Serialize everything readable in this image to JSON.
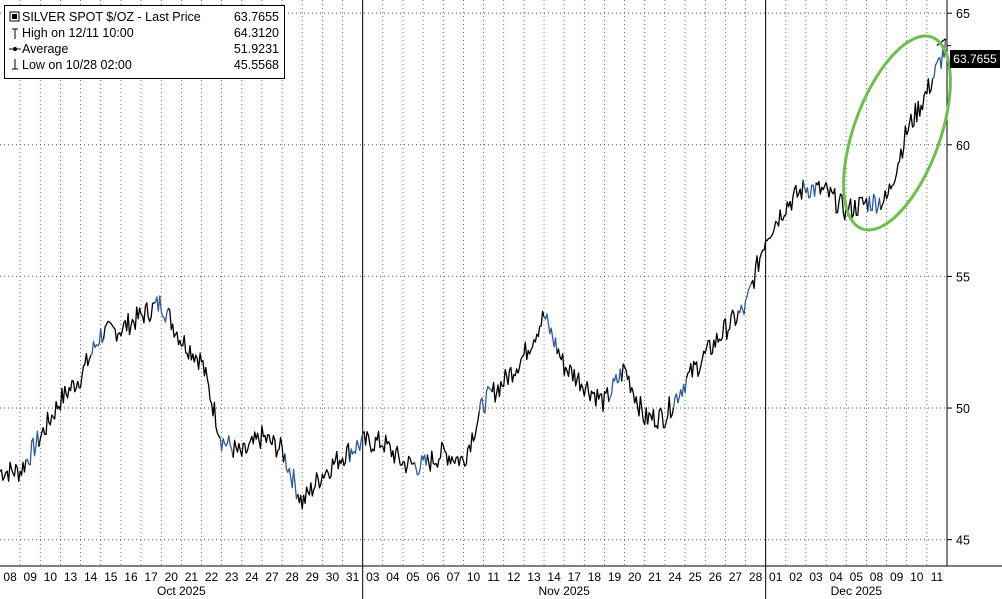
{
  "legend": {
    "title": "SILVER SPOT $/OZ - Last Price",
    "last_price": "63.7655",
    "high_label": "High on 12/11 10:00",
    "high_value": "64.3120",
    "avg_label": "Average",
    "avg_value": "51.9231",
    "low_label": "Low on 10/28 02:00",
    "low_value": "45.5568"
  },
  "price_tag": "63.7655",
  "chart_data": {
    "type": "line",
    "title": "SILVER SPOT $/OZ",
    "ylim": [
      44,
      65.5
    ],
    "yticks": [
      45,
      50,
      55,
      60,
      65
    ],
    "grid": true,
    "legend_position": "top-left",
    "day_labels": [
      "08",
      "09",
      "10",
      "13",
      "14",
      "15",
      "16",
      "17",
      "20",
      "21",
      "22",
      "23",
      "24",
      "27",
      "28",
      "29",
      "30",
      "31",
      "03",
      "04",
      "05",
      "06",
      "07",
      "10",
      "11",
      "12",
      "13",
      "14",
      "17",
      "18",
      "19",
      "20",
      "21",
      "24",
      "25",
      "26",
      "27",
      "28",
      "01",
      "02",
      "03",
      "04",
      "05",
      "08",
      "09",
      "10",
      "11"
    ],
    "month_labels": [
      {
        "label": "Oct 2025",
        "start_day": 0,
        "end_day": 17
      },
      {
        "label": "Nov 2025",
        "start_day": 18,
        "end_day": 37
      },
      {
        "label": "Dec 2025",
        "start_day": 38,
        "end_day": 46
      }
    ],
    "series": [
      {
        "name": "SILVER SPOT $/OZ",
        "values": [
          47.6,
          48.9,
          50.3,
          51.2,
          52.8,
          53.0,
          53.5,
          54.0,
          52.6,
          51.8,
          48.8,
          48.2,
          48.9,
          48.4,
          46.4,
          47.5,
          48.2,
          48.7,
          48.7,
          47.9,
          47.8,
          48.3,
          48.0,
          50.2,
          51.0,
          52.0,
          53.5,
          51.6,
          50.9,
          50.2,
          51.5,
          49.6,
          49.7,
          51.0,
          52.0,
          53.0,
          53.8,
          56.5,
          57.7,
          58.4,
          58.2,
          57.5,
          57.8,
          57.9,
          60.5,
          62.0,
          63.77
        ]
      }
    ],
    "high": 64.312,
    "average": 51.9231,
    "low": 45.5568,
    "last": 63.7655
  },
  "colors": {
    "line": "#000000",
    "segment": "#2f5b9a",
    "grid": "#555555",
    "highlight": "#6cc04a"
  }
}
